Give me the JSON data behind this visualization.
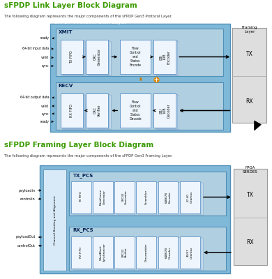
{
  "title1": "sFPDP Link Layer Block Diagram",
  "subtitle1": "The following diagram represents the major components of the sFPDP Gen3 Protocol Layer.",
  "title2": "sFPDP Framing Layer Block Diagram",
  "subtitle2": "The following diagram represents the major components of the sFPDP Gen3 Framing Layer.",
  "title_color": "#3a9a00",
  "subtitle_color": "#333333",
  "outer_blue": "#7ab4d8",
  "inner_blue": "#a8c8e0",
  "block_face": "#eef5fc",
  "block_edge": "#6699cc",
  "shadow_face": "#c5ddf0",
  "shadow_edge": "#88aac8",
  "side_box_face": "#e0e0e0",
  "side_box_edge": "#999999",
  "arrow_color": "#000000",
  "feedback_color": "#cc7700"
}
